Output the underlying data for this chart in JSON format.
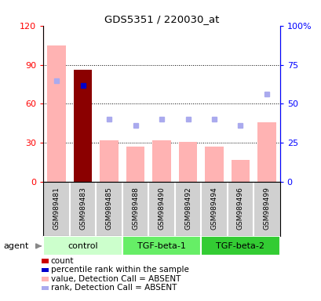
{
  "title": "GDS5351 / 220030_at",
  "samples": [
    "GSM989481",
    "GSM989483",
    "GSM989485",
    "GSM989488",
    "GSM989490",
    "GSM989492",
    "GSM989494",
    "GSM989496",
    "GSM989499"
  ],
  "bar_values": [
    105,
    86,
    32,
    27,
    32,
    31,
    27,
    17,
    46
  ],
  "bar_colors": [
    "#ffb3b3",
    "#8b0000",
    "#ffb3b3",
    "#ffb3b3",
    "#ffb3b3",
    "#ffb3b3",
    "#ffb3b3",
    "#ffb3b3",
    "#ffb3b3"
  ],
  "rank_dots": [
    65,
    62,
    40,
    36,
    40,
    40,
    40,
    36,
    56
  ],
  "rank_dot_colors": [
    "#aaaaee",
    "#0000cc",
    "#aaaaee",
    "#aaaaee",
    "#aaaaee",
    "#aaaaee",
    "#aaaaee",
    "#aaaaee",
    "#aaaaee"
  ],
  "ylim_left": [
    0,
    120
  ],
  "ylim_right": [
    0,
    100
  ],
  "yticks_left": [
    0,
    30,
    60,
    90,
    120
  ],
  "ytick_labels_left": [
    "0",
    "30",
    "60",
    "90",
    "120"
  ],
  "ytick_labels_right": [
    "0",
    "25",
    "50",
    "75",
    "100%"
  ],
  "yticks_right": [
    0,
    25,
    50,
    75,
    100
  ],
  "groups": [
    {
      "name": "control",
      "start": 0,
      "end": 2,
      "color": "#ccffcc"
    },
    {
      "name": "TGF-beta-1",
      "start": 3,
      "end": 5,
      "color": "#66ee66"
    },
    {
      "name": "TGF-beta-2",
      "start": 6,
      "end": 8,
      "color": "#33cc33"
    }
  ],
  "sample_bg": "#d0d0d0",
  "plot_bg": "#ffffff",
  "legend_items": [
    {
      "color": "#cc0000",
      "label": "count"
    },
    {
      "color": "#0000cc",
      "label": "percentile rank within the sample"
    },
    {
      "color": "#ffb3b3",
      "label": "value, Detection Call = ABSENT"
    },
    {
      "color": "#aaaaee",
      "label": "rank, Detection Call = ABSENT"
    }
  ]
}
